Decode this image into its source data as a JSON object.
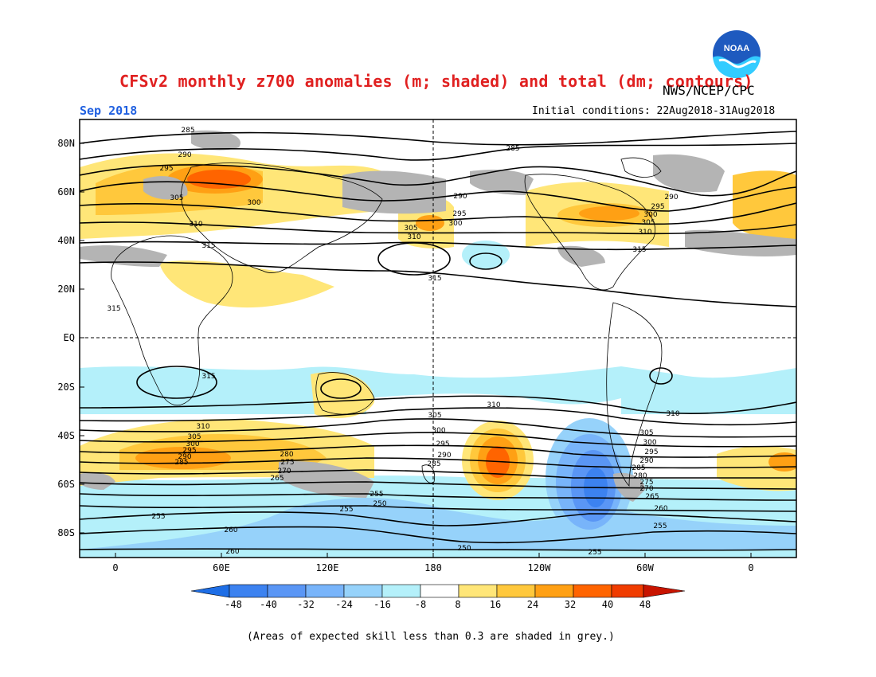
{
  "header": {
    "title": "CFSv2 monthly z700 anomalies (m; shaded) and total (dm; contours)",
    "agency": "NWS/NCEP/CPC",
    "logo_text": "NOAA",
    "month": "Sep 2018",
    "initial_conditions": "Initial conditions: 22Aug2018-31Aug2018"
  },
  "footnote": "(Areas of expected skill less than 0.3 are shaded in grey.)",
  "axes": {
    "lat_labels": [
      "80N",
      "60N",
      "40N",
      "20N",
      "EQ",
      "20S",
      "40S",
      "60S",
      "80S"
    ],
    "lon_labels": [
      "0",
      "60E",
      "120E",
      "180",
      "120W",
      "60W",
      "0"
    ]
  },
  "colorbar": {
    "ticks": [
      "-48",
      "-40",
      "-32",
      "-24",
      "-16",
      "-8",
      "8",
      "16",
      "24",
      "32",
      "40",
      "48"
    ],
    "colors": [
      "#1e6ee6",
      "#3c82f0",
      "#5a96f5",
      "#78b4fa",
      "#96d2fa",
      "#b4f0fa",
      "#ffffff",
      "#ffe678",
      "#ffc83c",
      "#ffa014",
      "#ff6400",
      "#f03c00",
      "#c81400"
    ]
  },
  "contour_labels": {
    "north": [
      "285",
      "290",
      "295",
      "300",
      "305",
      "310",
      "315"
    ],
    "south": [
      "310",
      "305",
      "300",
      "295",
      "290",
      "285",
      "280",
      "275",
      "270",
      "265",
      "260",
      "255",
      "250"
    ]
  },
  "colors": {
    "title": "#e02020",
    "month": "#2060e0",
    "skill_grey": "#b4b4b4"
  }
}
